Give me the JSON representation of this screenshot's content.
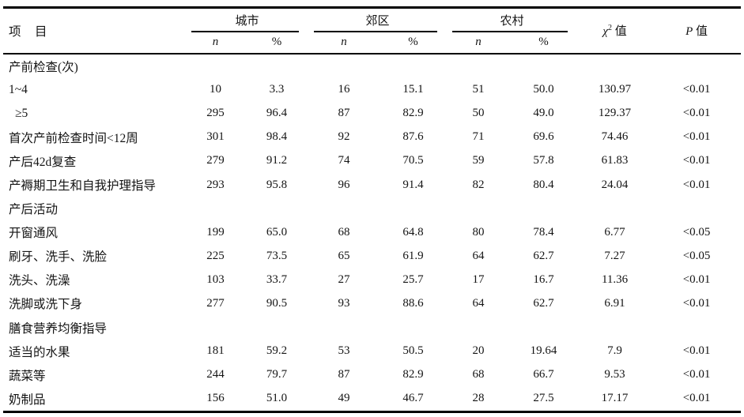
{
  "page": {
    "background": "#ffffff",
    "text_color": "#141414",
    "rule_color": "#000000"
  },
  "table": {
    "item_header": "项　目",
    "groups": [
      {
        "label": "城市"
      },
      {
        "label": "郊区"
      },
      {
        "label": "农村"
      }
    ],
    "sub_headers": [
      "n",
      "%",
      "n",
      "%",
      "n",
      "%"
    ],
    "chi_header": {
      "symbol": "χ",
      "sup": "2",
      "suffix": " 值"
    },
    "p_header": {
      "symbol": "P",
      "suffix": " 值"
    },
    "rows": [
      {
        "item": "产前检查(次)",
        "section": true,
        "cells": [
          "",
          "",
          "",
          "",
          "",
          "",
          "",
          ""
        ]
      },
      {
        "item": "1~4",
        "section": false,
        "cells": [
          "10",
          "3.3",
          "16",
          "15.1",
          "51",
          "50.0",
          "130.97",
          "<0.01"
        ]
      },
      {
        "item": "≥5",
        "section": false,
        "indent": true,
        "cells": [
          "295",
          "96.4",
          "87",
          "82.9",
          "50",
          "49.0",
          "129.37",
          "<0.01"
        ]
      },
      {
        "item": "首次产前检查时间<12周",
        "section": false,
        "cells": [
          "301",
          "98.4",
          "92",
          "87.6",
          "71",
          "69.6",
          "74.46",
          "<0.01"
        ]
      },
      {
        "item": "产后42d复查",
        "section": false,
        "cells": [
          "279",
          "91.2",
          "74",
          "70.5",
          "59",
          "57.8",
          "61.83",
          "<0.01"
        ]
      },
      {
        "item": "产褥期卫生和自我护理指导",
        "section": false,
        "cells": [
          "293",
          "95.8",
          "96",
          "91.4",
          "82",
          "80.4",
          "24.04",
          "<0.01"
        ]
      },
      {
        "item": "产后活动",
        "section": true,
        "cells": [
          "",
          "",
          "",
          "",
          "",
          "",
          "",
          ""
        ]
      },
      {
        "item": "开窗通风",
        "section": false,
        "cells": [
          "199",
          "65.0",
          "68",
          "64.8",
          "80",
          "78.4",
          "6.77",
          "<0.05"
        ]
      },
      {
        "item": "刷牙、洗手、洗脸",
        "section": false,
        "cells": [
          "225",
          "73.5",
          "65",
          "61.9",
          "64",
          "62.7",
          "7.27",
          "<0.05"
        ]
      },
      {
        "item": "洗头、洗澡",
        "section": false,
        "cells": [
          "103",
          "33.7",
          "27",
          "25.7",
          "17",
          "16.7",
          "11.36",
          "<0.01"
        ]
      },
      {
        "item": "洗脚或洗下身",
        "section": false,
        "cells": [
          "277",
          "90.5",
          "93",
          "88.6",
          "64",
          "62.7",
          "6.91",
          "<0.01"
        ]
      },
      {
        "item": "膳食营养均衡指导",
        "section": true,
        "cells": [
          "",
          "",
          "",
          "",
          "",
          "",
          "",
          ""
        ]
      },
      {
        "item": "适当的水果",
        "section": false,
        "cells": [
          "181",
          "59.2",
          "53",
          "50.5",
          "20",
          "19.64",
          "7.9",
          "<0.01"
        ]
      },
      {
        "item": "蔬菜等",
        "section": false,
        "cells": [
          "244",
          "79.7",
          "87",
          "82.9",
          "68",
          "66.7",
          "9.53",
          "<0.01"
        ]
      },
      {
        "item": "奶制品",
        "section": false,
        "cells": [
          "156",
          "51.0",
          "49",
          "46.7",
          "28",
          "27.5",
          "17.17",
          "<0.01"
        ]
      }
    ]
  }
}
